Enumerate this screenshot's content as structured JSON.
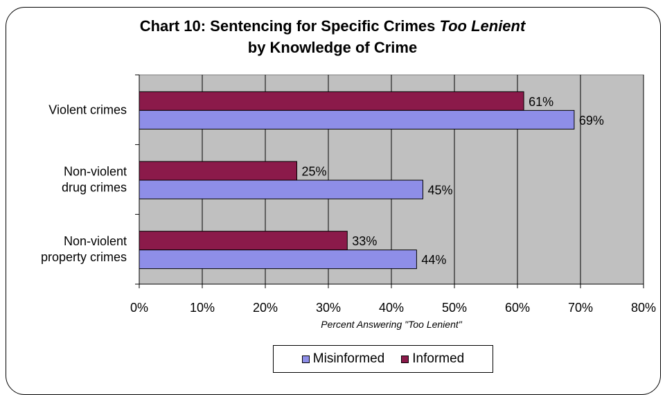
{
  "chart_data": {
    "type": "bar",
    "orientation": "horizontal",
    "title_line1": "Chart 10: Sentencing for Specific Crimes ",
    "title_emphasis": "Too Lenient",
    "title_line2": "by Knowledge of Crime",
    "xlabel": "Percent Answering \"Too Lenient\"",
    "ylabel": "",
    "categories": [
      [
        "Violent crimes"
      ],
      [
        "Non-violent",
        "drug crimes"
      ],
      [
        "Non-violent",
        "property crimes"
      ]
    ],
    "series": [
      {
        "name": "Informed",
        "values": [
          61,
          25,
          33
        ],
        "color": "#8b1a4a",
        "labels": [
          "61%",
          "25%",
          "33%"
        ]
      },
      {
        "name": "Misinformed",
        "values": [
          69,
          45,
          44
        ],
        "color": "#8e8ee8",
        "labels": [
          "69%",
          "45%",
          "44%"
        ]
      }
    ],
    "x_ticks": [
      0,
      10,
      20,
      30,
      40,
      50,
      60,
      70,
      80
    ],
    "x_tick_labels": [
      "0%",
      "10%",
      "20%",
      "30%",
      "40%",
      "50%",
      "60%",
      "70%",
      "80%"
    ],
    "xlim": [
      0,
      80
    ],
    "grid": true,
    "plot_background": "#c0c0c0",
    "legend_position": "bottom",
    "legend_order": [
      "Misinformed",
      "Informed"
    ]
  }
}
